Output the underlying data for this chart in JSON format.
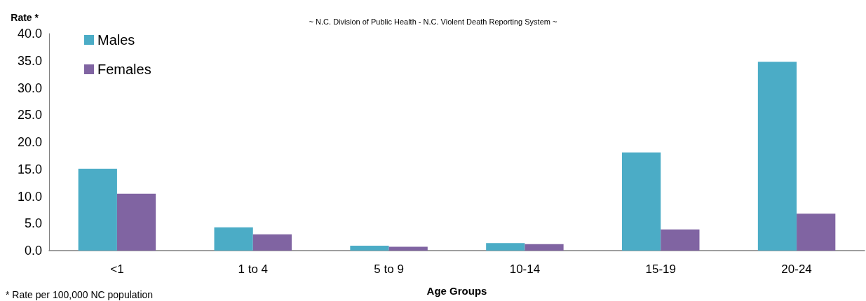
{
  "chart_data": {
    "type": "bar",
    "subtitle": "~ N.C. Division of Public Health - N.C. Violent Death Reporting System ~",
    "xlabel": "Age Groups",
    "ylabel": "Rate *",
    "annotations": [
      "* Rate per 100,000 NC population"
    ],
    "categories": [
      "<1",
      "1 to 4",
      "5 to 9",
      "10-14",
      "15-19",
      "20-24"
    ],
    "series": [
      {
        "name": "Males",
        "color": "#4bacc6",
        "values": [
          15.1,
          4.3,
          0.9,
          1.4,
          18.1,
          34.8
        ]
      },
      {
        "name": "Females",
        "color": "#8064a2",
        "values": [
          10.5,
          3.0,
          0.7,
          1.2,
          3.9,
          6.8
        ]
      }
    ],
    "ylim": [
      0,
      40
    ],
    "yticks": [
      {
        "value": 0,
        "label": "0.0"
      },
      {
        "value": 5,
        "label": "5.0"
      },
      {
        "value": 10,
        "label": "10.0"
      },
      {
        "value": 15,
        "label": "15.0"
      },
      {
        "value": 20,
        "label": "20.0"
      },
      {
        "value": 25,
        "label": "25.0"
      },
      {
        "value": 30,
        "label": "30.0"
      },
      {
        "value": 35,
        "label": "35.0"
      },
      {
        "value": 40,
        "label": "40.0"
      }
    ],
    "grid": false,
    "legend": "top left"
  }
}
